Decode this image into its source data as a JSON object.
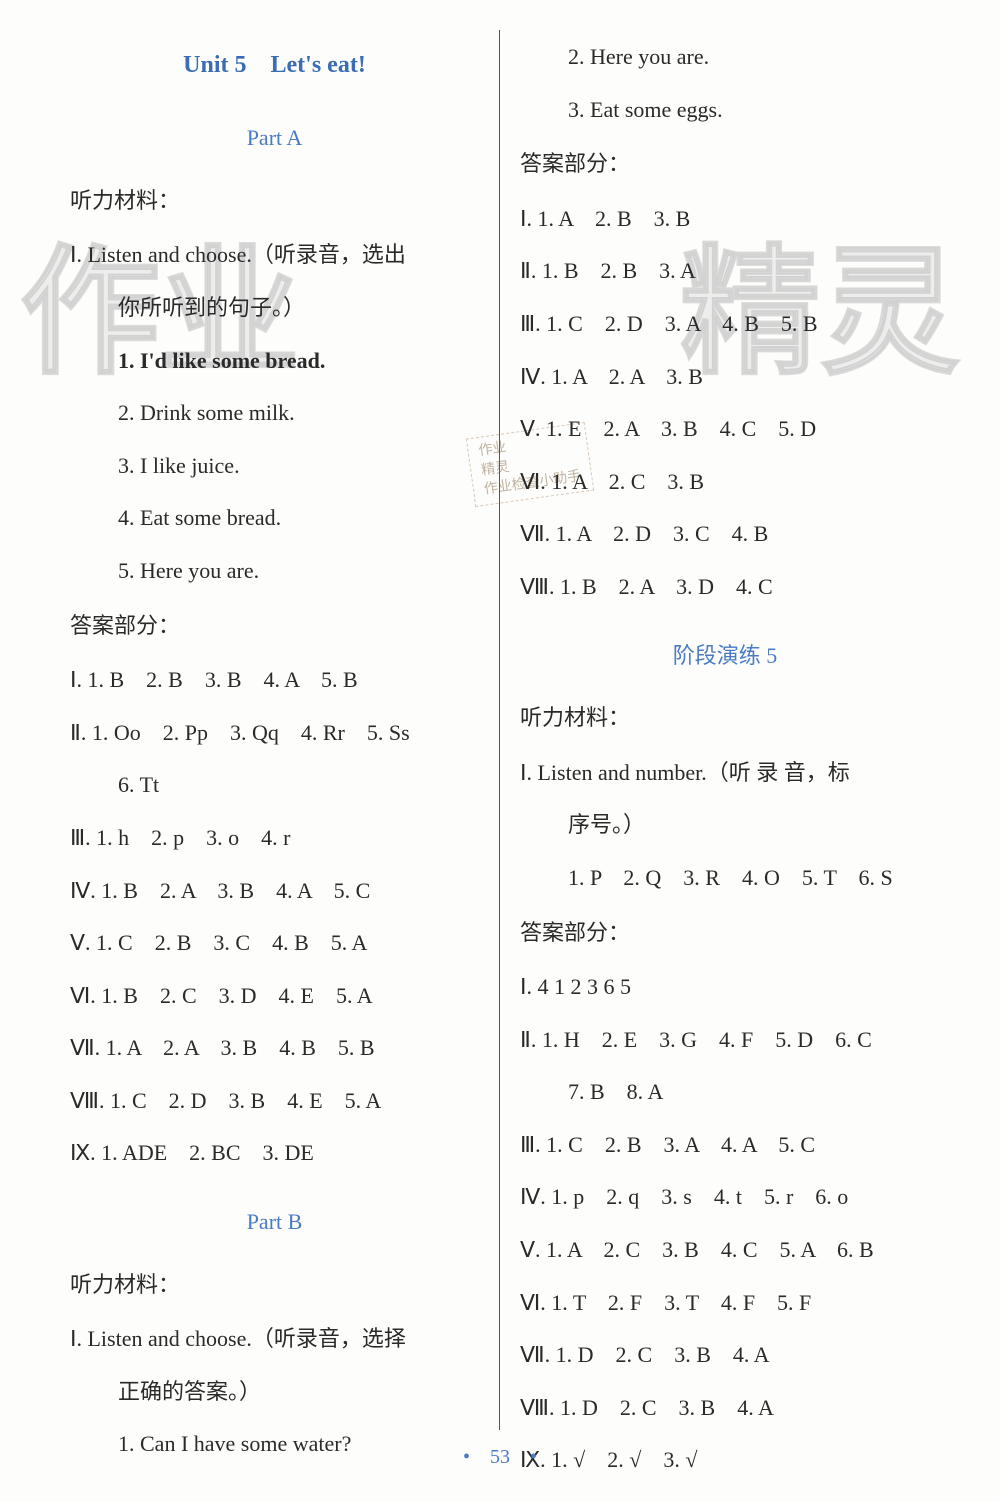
{
  "watermarks": {
    "left": "作业",
    "right": "精灵"
  },
  "stamp": {
    "line1": "作业",
    "line2": "精灵",
    "line3": "作业检查小助手"
  },
  "pageNumber": "53",
  "left": {
    "unitTitle": "Unit 5　Let's eat!",
    "partA": "Part A",
    "listenHead": "听力材料：",
    "listenInstr": "Ⅰ. Listen and choose.（听录音，选出",
    "listenInstr2": "你所听到的句子。）",
    "l1": "1. I'd like some bread.",
    "l2": "2. Drink some milk.",
    "l3": "3. I like juice.",
    "l4": "4. Eat some bread.",
    "l5": "5. Here you are.",
    "ansHead": "答案部分：",
    "a1": "Ⅰ. 1. B　2. B　3. B　4. A　5. B",
    "a2": "Ⅱ. 1. Oo　2. Pp　3. Qq　4. Rr　5. Ss",
    "a2b": "6. Tt",
    "a3": "Ⅲ. 1. h　2. p　3. o　4. r",
    "a4": "Ⅳ. 1. B　2. A　3. B　4. A　5. C",
    "a5": "Ⅴ. 1. C　2. B　3. C　4. B　5. A",
    "a6": "Ⅵ. 1. B　2. C　3. D　4. E　5. A",
    "a7": "Ⅶ. 1. A　2. A　3. B　4. B　5. B",
    "a8": "Ⅷ. 1. C　2. D　3. B　4. E　5. A",
    "a9": "Ⅸ. 1. ADE　2. BC　3. DE",
    "partB": "Part B",
    "listenHeadB": "听力材料：",
    "bInstr": "Ⅰ. Listen and choose.（听录音，选择",
    "bInstr2": "正确的答案。）",
    "b1": "1. Can I have some water?"
  },
  "right": {
    "r1": "2. Here you are.",
    "r2": "3. Eat some eggs.",
    "ansHead": "答案部分：",
    "ra1": "Ⅰ. 1. A　2. B　3. B",
    "ra2": "Ⅱ. 1. B　2. B　3. A",
    "ra3": "Ⅲ. 1. C　2. D　3. A　4. B　5. B",
    "ra4": "Ⅳ. 1. A　2. A　3. B",
    "ra5": "Ⅴ. 1. E　2. A　3. B　4. C　5. D",
    "ra6": "Ⅵ. 1. A　2. C　3. B",
    "ra7": "Ⅶ. 1. A　2. D　3. C　4. B",
    "ra8": "Ⅷ. 1. B　2. A　3. D　4. C",
    "stage": "阶段演练 5",
    "listenHead2": "听力材料：",
    "sInstr": "Ⅰ. Listen and number.（听 录 音，标",
    "sInstr2": "序号。）",
    "s1": "1. P　2. Q　3. R　4. O　5. T　6. S",
    "ansHead2": "答案部分：",
    "sa1": "Ⅰ. 4 1 2 3 6 5",
    "sa2": "Ⅱ. 1. H　2. E　3. G　4. F　5. D　6. C",
    "sa2b": "7. B　8. A",
    "sa3": "Ⅲ. 1. C　2. B　3. A　4. A　5. C",
    "sa4": "Ⅳ. 1. p　2. q　3. s　4. t　5. r　6. o",
    "sa5": "Ⅴ. 1. A　2. C　3. B　4. C　5. A　6. B",
    "sa6": "Ⅵ. 1. T　2. F　3. T　4. F　5. F",
    "sa7": "Ⅶ. 1. D　2. C　3. B　4. A",
    "sa8": "Ⅷ. 1. D　2. C　3. B　4. A",
    "sa9": "Ⅸ. 1. √　2. √　3. √"
  }
}
